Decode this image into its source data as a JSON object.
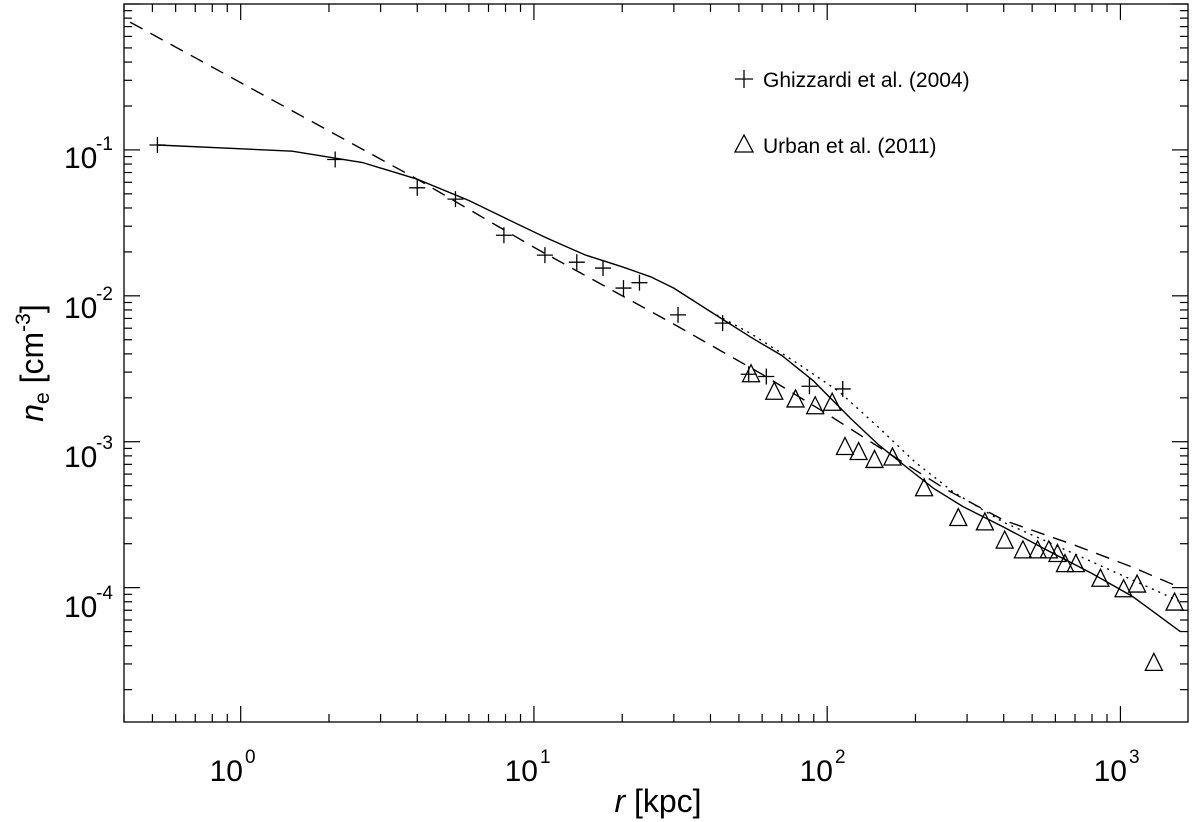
{
  "chart_data": {
    "type": "scatter",
    "xscale": "log",
    "yscale": "log",
    "xlim": [
      0.4,
      1700
    ],
    "ylim": [
      1.2e-05,
      1.0
    ],
    "xlabel": {
      "symbol": "r",
      "unit": " [kpc]"
    },
    "ylabel": {
      "symbol": "n",
      "subscript": "e",
      "unit_prefix": " [cm",
      "unit_exp": "-3",
      "unit_suffix": "]"
    },
    "x_ticks": [
      {
        "base": "10",
        "exp": "0",
        "value": 1
      },
      {
        "base": "10",
        "exp": "1",
        "value": 10
      },
      {
        "base": "10",
        "exp": "2",
        "value": 100
      },
      {
        "base": "10",
        "exp": "3",
        "value": 1000
      }
    ],
    "y_ticks": [
      {
        "base": "10",
        "exp": "-1",
        "value": 0.1
      },
      {
        "base": "10",
        "exp": "-2",
        "value": 0.01
      },
      {
        "base": "10",
        "exp": "-3",
        "value": 0.001
      },
      {
        "base": "10",
        "exp": "-4",
        "value": 0.0001
      }
    ],
    "legend": {
      "placement": "top-right",
      "entries": [
        {
          "marker": "plus",
          "label": "Ghizzardi et al. (2004)"
        },
        {
          "marker": "triangle",
          "label": "Urban et al. (2011)"
        }
      ]
    },
    "series": [
      {
        "name": "Ghizzardi et al. (2004)",
        "marker": "plus",
        "points": [
          [
            0.52,
            0.108
          ],
          [
            2.1,
            0.086
          ],
          [
            4.0,
            0.055
          ],
          [
            5.4,
            0.046
          ],
          [
            7.9,
            0.026
          ],
          [
            10.9,
            0.019
          ],
          [
            14.0,
            0.017
          ],
          [
            17.2,
            0.0155
          ],
          [
            20.2,
            0.0113
          ],
          [
            22.9,
            0.0123
          ],
          [
            31.0,
            0.0074
          ],
          [
            44.0,
            0.0065
          ],
          [
            54.0,
            0.0029
          ],
          [
            62.0,
            0.0028
          ],
          [
            87.0,
            0.0024
          ],
          [
            113.0,
            0.0023
          ]
        ]
      },
      {
        "name": "Urban et al. (2011)",
        "marker": "triangle",
        "points": [
          [
            55.0,
            0.0029
          ],
          [
            66.0,
            0.0022
          ],
          [
            78.0,
            0.00195
          ],
          [
            91.0,
            0.00175
          ],
          [
            104.0,
            0.00185
          ],
          [
            115.0,
            0.00092
          ],
          [
            128.0,
            0.00085
          ],
          [
            145.0,
            0.00075
          ],
          [
            167.0,
            0.00078
          ],
          [
            214.0,
            0.00048
          ],
          [
            280.0,
            0.0003
          ],
          [
            345.0,
            0.00028
          ],
          [
            403.0,
            0.00021
          ],
          [
            465.0,
            0.00018
          ],
          [
            522.0,
            0.00018
          ],
          [
            570.0,
            0.00018
          ],
          [
            610.0,
            0.00017
          ],
          [
            647.0,
            0.000145
          ],
          [
            705.0,
            0.000145
          ],
          [
            855.0,
            0.000115
          ],
          [
            1025.0,
            9.75e-05
          ],
          [
            1140.0,
            0.000105
          ],
          [
            1300.0,
            3.05e-05
          ],
          [
            1530.0,
            7.9e-05
          ]
        ]
      },
      {
        "style": "solid",
        "points": [
          [
            0.52,
            0.108
          ],
          [
            1.5,
            0.098
          ],
          [
            2.6,
            0.082
          ],
          [
            4.0,
            0.063
          ],
          [
            6.0,
            0.045
          ],
          [
            8.0,
            0.034
          ],
          [
            11.0,
            0.025
          ],
          [
            15.0,
            0.019
          ],
          [
            20.0,
            0.0158
          ],
          [
            25.0,
            0.0135
          ],
          [
            30.0,
            0.0113
          ],
          [
            40.0,
            0.0078
          ],
          [
            55.0,
            0.0052
          ],
          [
            70.0,
            0.0039
          ],
          [
            90.0,
            0.0026
          ],
          [
            120.0,
            0.00145
          ],
          [
            150.0,
            0.00095
          ],
          [
            190.0,
            0.00065
          ],
          [
            230.0,
            0.00048
          ],
          [
            290.0,
            0.00036
          ],
          [
            400.0,
            0.00026
          ],
          [
            550.0,
            0.000185
          ],
          [
            800.0,
            0.000125
          ],
          [
            1100.0,
            8.7e-05
          ],
          [
            1600.0,
            5e-05
          ]
        ]
      },
      {
        "style": "dotted",
        "points": [
          [
            40.0,
            0.0078
          ],
          [
            55.0,
            0.0055
          ],
          [
            80.0,
            0.0034
          ],
          [
            110.0,
            0.0022
          ],
          [
            150.0,
            0.00125
          ],
          [
            200.0,
            0.00072
          ],
          [
            270.0,
            0.00045
          ],
          [
            400.0,
            0.00028
          ],
          [
            600.0,
            0.000195
          ],
          [
            900.0,
            0.000135
          ],
          [
            1300.0,
            9.7e-05
          ],
          [
            1600.0,
            8e-05
          ]
        ]
      },
      {
        "style": "dashed",
        "points": [
          [
            0.42,
            0.75
          ],
          [
            4.0,
            0.063
          ],
          [
            10.0,
            0.0215
          ],
          [
            30.0,
            0.0064
          ],
          [
            60.0,
            0.0029
          ],
          [
            100.0,
            0.00155
          ],
          [
            150.0,
            0.00092
          ],
          [
            250.0,
            0.00048
          ],
          [
            400.0,
            0.00029
          ],
          [
            700.0,
            0.000195
          ],
          [
            1100.0,
            0.000138
          ],
          [
            1600.0,
            0.0001
          ]
        ]
      }
    ]
  }
}
